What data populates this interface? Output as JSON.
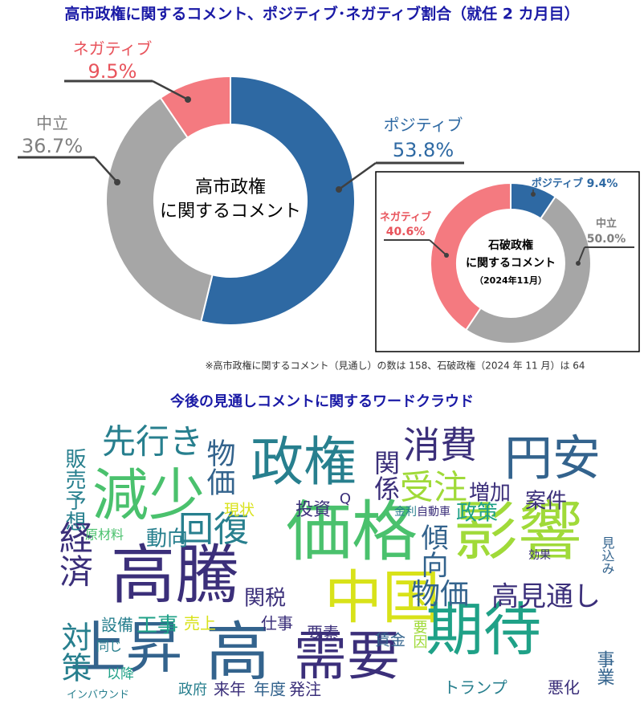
{
  "title": "高市政権に関するコメント、ポジティブ･ネガティブ割合（就任 2 カ月目）",
  "chart_data": [
    {
      "type": "pie",
      "donut": true,
      "center_label": [
        "高市政権",
        "に関するコメント"
      ],
      "categories": [
        "ポジティブ",
        "中立",
        "ネガティブ"
      ],
      "values": [
        53.8,
        36.7,
        9.5
      ],
      "value_labels": [
        "53.8%",
        "36.7%",
        "9.5%"
      ],
      "colors": [
        "#2e69a3",
        "#a6a6a6",
        "#f47a80"
      ]
    },
    {
      "type": "pie",
      "donut": true,
      "center_label": [
        "石破政権",
        "に関するコメント",
        "（2024年11月）"
      ],
      "categories": [
        "ポジティブ",
        "中立",
        "ネガティブ"
      ],
      "values": [
        9.4,
        50.0,
        40.6
      ],
      "value_labels": [
        "9.4%",
        "50.0%",
        "40.6%"
      ],
      "colors": [
        "#2e69a3",
        "#a6a6a6",
        "#f47a80"
      ]
    }
  ],
  "note": "※高市政権に関するコメント（見通し）の数は 158、石破政権（2024 年 11 月）は 64",
  "word_cloud": {
    "title": "今後の見通しコメントに関するワードクラウド",
    "words": [
      "政権",
      "円安",
      "消費",
      "減少",
      "先行き",
      "価格",
      "影響",
      "高騰",
      "中国",
      "上昇",
      "高",
      "需要",
      "期待",
      "物価",
      "高見通し",
      "回復",
      "受注",
      "関係",
      "物価",
      "経済",
      "対策",
      "傾向",
      "増加",
      "政策",
      "案件",
      "動向",
      "関税",
      "投資",
      "現状",
      "仕事",
      "工事",
      "設備",
      "売上",
      "要素",
      "賃金",
      "トランプ",
      "悪化",
      "事業",
      "発注",
      "年度",
      "来年",
      "政府",
      "以降",
      "インバウンド",
      "販売予想",
      "原材料",
      "同じ",
      "見込み",
      "自動車",
      "金利",
      "効果",
      "要因",
      "Q"
    ]
  }
}
